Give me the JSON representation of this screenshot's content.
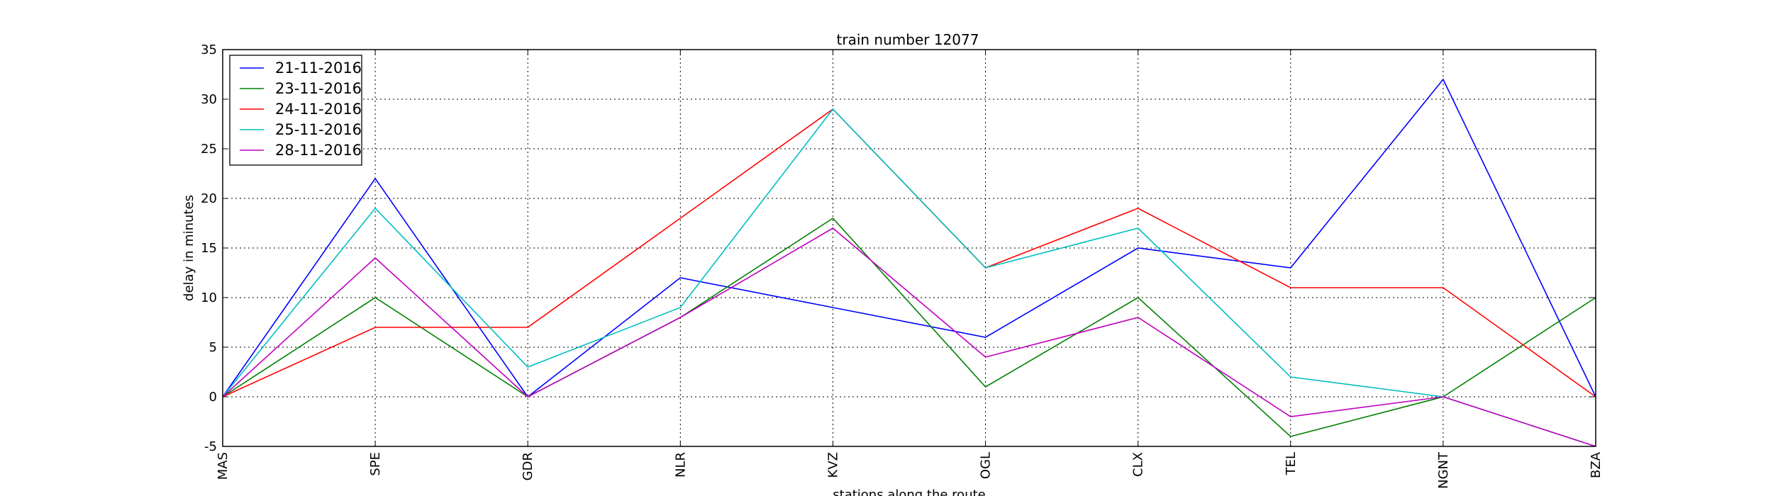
{
  "chart_data": {
    "type": "line",
    "title": "train number 12077",
    "xlabel": "stations along the route",
    "ylabel": "delay in minutes",
    "categories": [
      "MAS",
      "SPE",
      "GDR",
      "NLR",
      "KVZ",
      "OGL",
      "CLX",
      "TEL",
      "NGNT",
      "BZA"
    ],
    "ylim": [
      -5,
      35
    ],
    "yticks": [
      -5,
      0,
      5,
      10,
      15,
      20,
      25,
      30,
      35
    ],
    "grid": true,
    "legend_position": "top-left",
    "series": [
      {
        "name": "21-11-2016",
        "color": "#0000ff",
        "values": [
          0,
          22,
          0,
          12,
          9,
          6,
          15,
          13,
          32,
          0
        ]
      },
      {
        "name": "23-11-2016",
        "color": "#008000",
        "values": [
          0,
          10,
          0,
          8,
          18,
          1,
          10,
          -4,
          0,
          10
        ]
      },
      {
        "name": "24-11-2016",
        "color": "#ff0000",
        "values": [
          0,
          7,
          7,
          18,
          29,
          13,
          19,
          11,
          11,
          0
        ]
      },
      {
        "name": "25-11-2016",
        "color": "#00bfbf",
        "values": [
          0,
          19,
          3,
          9,
          29,
          13,
          17,
          2,
          0,
          -5
        ]
      },
      {
        "name": "28-11-2016",
        "color": "#bf00bf",
        "values": [
          0,
          14,
          0,
          8,
          17,
          4,
          8,
          -2,
          0,
          -5
        ]
      }
    ]
  }
}
